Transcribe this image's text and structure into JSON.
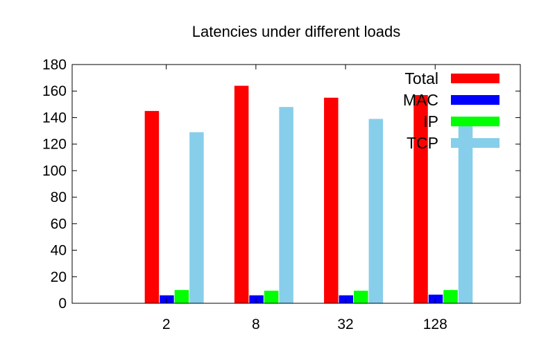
{
  "chart_data": {
    "type": "bar",
    "title": "Latencies under different loads",
    "xlabel": "",
    "ylabel": "",
    "ylim": [
      0,
      180
    ],
    "yticks": [
      0,
      20,
      40,
      60,
      80,
      100,
      120,
      140,
      160,
      180
    ],
    "categories": [
      "2",
      "8",
      "32",
      "128"
    ],
    "series": [
      {
        "name": "Total",
        "color": "#ff0000",
        "values": [
          145,
          164,
          155,
          157
        ]
      },
      {
        "name": "MAC",
        "color": "#0000ff",
        "values": [
          6,
          6,
          6,
          6.5
        ]
      },
      {
        "name": "IP",
        "color": "#00ff00",
        "values": [
          10,
          9.5,
          9.5,
          10
        ]
      },
      {
        "name": "TCP",
        "color": "#87ceeb",
        "values": [
          129,
          148,
          139,
          140
        ]
      }
    ],
    "legend_position": "top-right",
    "grid": false
  }
}
